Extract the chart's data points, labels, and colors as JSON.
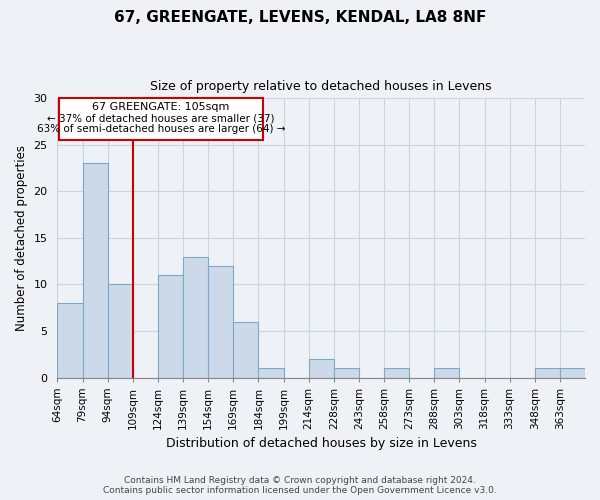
{
  "title": "67, GREENGATE, LEVENS, KENDAL, LA8 8NF",
  "subtitle": "Size of property relative to detached houses in Levens",
  "xlabel": "Distribution of detached houses by size in Levens",
  "ylabel": "Number of detached properties",
  "categories": [
    "64sqm",
    "79sqm",
    "94sqm",
    "109sqm",
    "124sqm",
    "139sqm",
    "154sqm",
    "169sqm",
    "184sqm",
    "199sqm",
    "214sqm",
    "228sqm",
    "243sqm",
    "258sqm",
    "273sqm",
    "288sqm",
    "303sqm",
    "318sqm",
    "333sqm",
    "348sqm",
    "363sqm"
  ],
  "values": [
    8,
    23,
    10,
    0,
    11,
    13,
    12,
    6,
    1,
    0,
    2,
    1,
    0,
    1,
    0,
    1,
    0,
    0,
    0,
    1,
    1
  ],
  "bar_color": "#ccd9e8",
  "bar_edge_color": "#7aaac8",
  "grid_color": "#c8d4e0",
  "annotation_text_line1": "67 GREENGATE: 105sqm",
  "annotation_text_line2": "← 37% of detached houses are smaller (37)",
  "annotation_text_line3": "63% of semi-detached houses are larger (64) →",
  "annotation_box_color": "#ffffff",
  "annotation_box_edge_color": "#cc0000",
  "annotation_line_color": "#cc0000",
  "ylim": [
    0,
    30
  ],
  "yticks": [
    0,
    5,
    10,
    15,
    20,
    25,
    30
  ],
  "footer_line1": "Contains HM Land Registry data © Crown copyright and database right 2024.",
  "footer_line2": "Contains public sector information licensed under the Open Government Licence v3.0.",
  "bg_color": "#eef2f7",
  "plot_bg_color": "#eef2f7"
}
